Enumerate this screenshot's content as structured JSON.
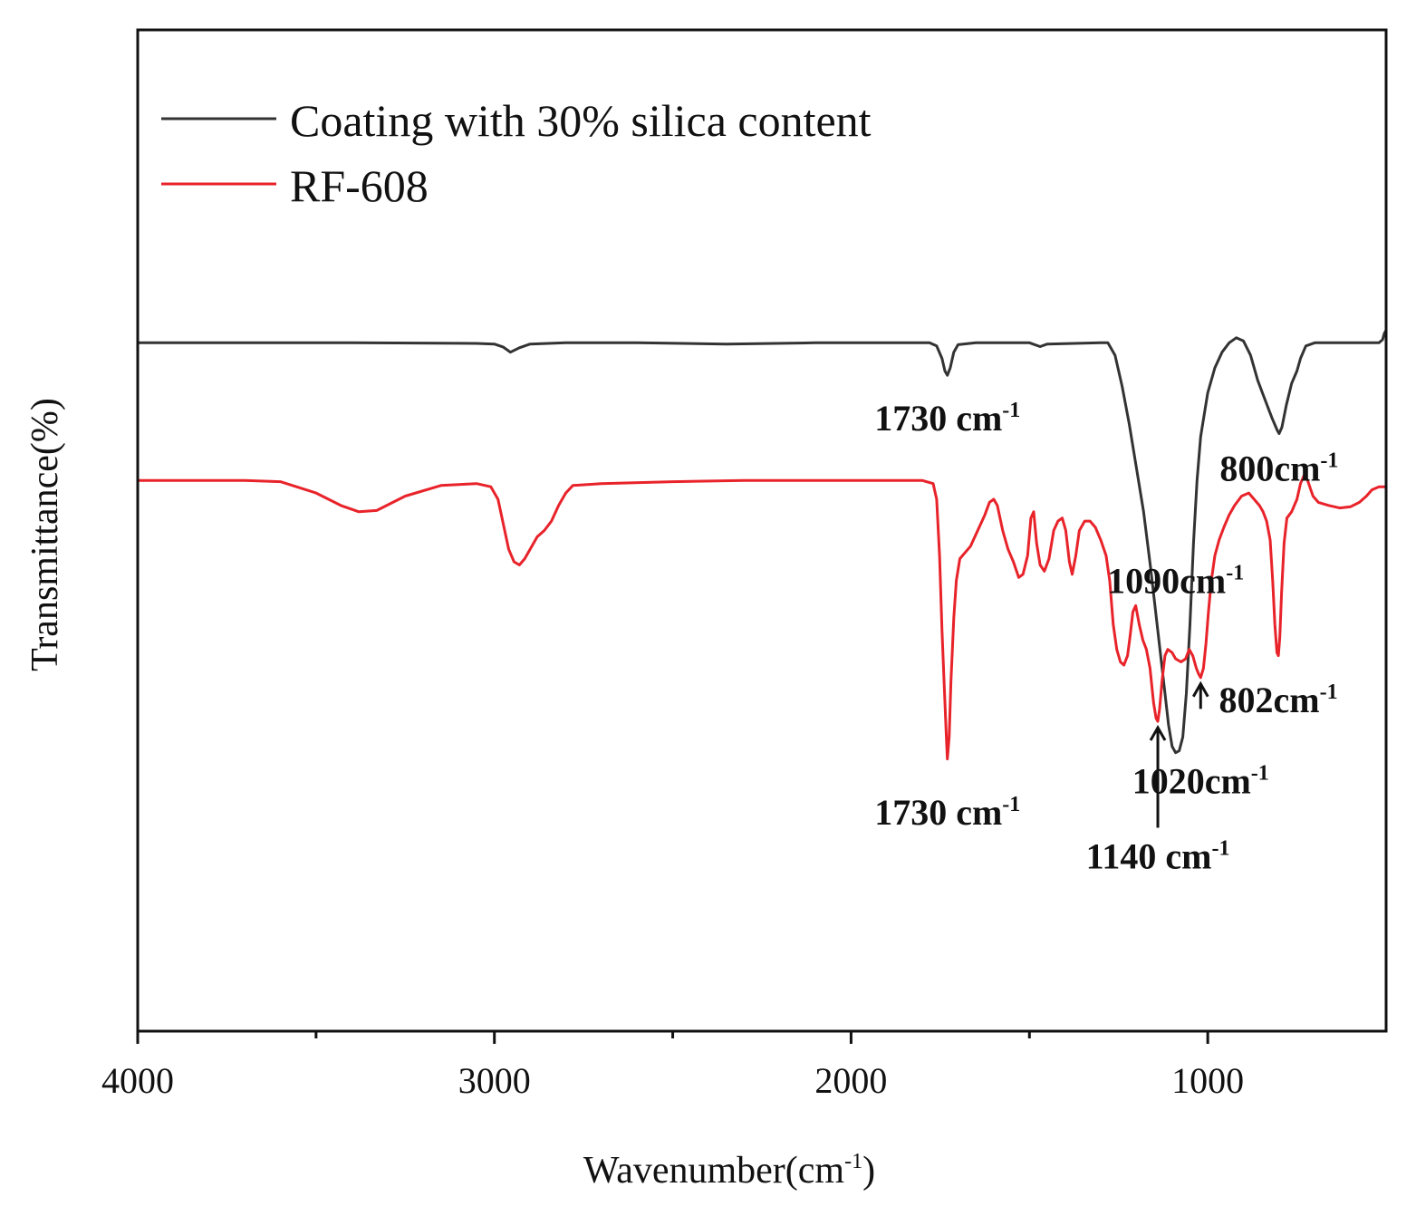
{
  "chart_data": {
    "type": "line",
    "xlabel": "Wavenumber(cm",
    "xlabel_sup": "-1",
    "xlabel_suffix": ")",
    "ylabel": "Transmittance(%)",
    "xlim": [
      4000,
      500
    ],
    "x_reversed": true,
    "ylim": [
      -50,
      110
    ],
    "x_ticks": [
      4000,
      3000,
      2000,
      1000
    ],
    "x_tick_labels": [
      "4000",
      "3000",
      "2000",
      "1000"
    ],
    "x_minor_ticks": [
      3500,
      2500,
      1500
    ],
    "y_ticks_shown": false,
    "grid": false,
    "legend_position": "top-left",
    "legend": [
      {
        "name": "Coating with 30% silica content",
        "color": "#333333"
      },
      {
        "name": "RF-608",
        "color": "#e8232a"
      }
    ],
    "series": [
      {
        "name": "Coating with 30% silica content",
        "color": "#333333",
        "points": [
          [
            4000,
            60
          ],
          [
            3700,
            60
          ],
          [
            3400,
            60
          ],
          [
            3050,
            59.9
          ],
          [
            3000,
            59.8
          ],
          [
            2975,
            59.3
          ],
          [
            2955,
            58.5
          ],
          [
            2930,
            59.2
          ],
          [
            2900,
            59.8
          ],
          [
            2800,
            60
          ],
          [
            2600,
            60
          ],
          [
            2350,
            59.8
          ],
          [
            2100,
            60
          ],
          [
            1900,
            60
          ],
          [
            1780,
            60
          ],
          [
            1760,
            59.5
          ],
          [
            1745,
            57.5
          ],
          [
            1737,
            55.5
          ],
          [
            1730,
            54.8
          ],
          [
            1722,
            56
          ],
          [
            1712,
            58.5
          ],
          [
            1700,
            59.7
          ],
          [
            1650,
            60
          ],
          [
            1500,
            60
          ],
          [
            1470,
            59.4
          ],
          [
            1450,
            59.8
          ],
          [
            1300,
            60
          ],
          [
            1280,
            60
          ],
          [
            1260,
            58
          ],
          [
            1240,
            53
          ],
          [
            1220,
            47
          ],
          [
            1200,
            40
          ],
          [
            1180,
            33
          ],
          [
            1160,
            24
          ],
          [
            1140,
            14
          ],
          [
            1120,
            4
          ],
          [
            1110,
            -1
          ],
          [
            1100,
            -4.5
          ],
          [
            1090,
            -5.5
          ],
          [
            1080,
            -5.2
          ],
          [
            1070,
            -3
          ],
          [
            1060,
            4
          ],
          [
            1050,
            15
          ],
          [
            1040,
            28
          ],
          [
            1030,
            38
          ],
          [
            1020,
            45
          ],
          [
            1000,
            52
          ],
          [
            980,
            56
          ],
          [
            960,
            58.5
          ],
          [
            940,
            60
          ],
          [
            920,
            60.8
          ],
          [
            900,
            60.3
          ],
          [
            880,
            58
          ],
          [
            860,
            54
          ],
          [
            840,
            51
          ],
          [
            820,
            48
          ],
          [
            805,
            46
          ],
          [
            800,
            45.5
          ],
          [
            792,
            46.5
          ],
          [
            780,
            50
          ],
          [
            765,
            53.5
          ],
          [
            750,
            55.5
          ],
          [
            740,
            57.5
          ],
          [
            725,
            59.5
          ],
          [
            700,
            60
          ],
          [
            600,
            60
          ],
          [
            540,
            60
          ],
          [
            520,
            60
          ],
          [
            510,
            60.5
          ],
          [
            505,
            61.5
          ],
          [
            500,
            62
          ]
        ]
      },
      {
        "name": "RF-608",
        "color": "#e8232a",
        "points": [
          [
            4000,
            38
          ],
          [
            3700,
            38
          ],
          [
            3600,
            37.8
          ],
          [
            3500,
            36
          ],
          [
            3430,
            34
          ],
          [
            3380,
            33
          ],
          [
            3330,
            33.2
          ],
          [
            3250,
            35.5
          ],
          [
            3150,
            37.2
          ],
          [
            3050,
            37.5
          ],
          [
            3010,
            37
          ],
          [
            2990,
            35
          ],
          [
            2975,
            31
          ],
          [
            2960,
            27
          ],
          [
            2945,
            25
          ],
          [
            2930,
            24.5
          ],
          [
            2915,
            25.5
          ],
          [
            2900,
            27
          ],
          [
            2880,
            29
          ],
          [
            2860,
            30
          ],
          [
            2840,
            31.5
          ],
          [
            2820,
            34
          ],
          [
            2800,
            36
          ],
          [
            2780,
            37.2
          ],
          [
            2700,
            37.5
          ],
          [
            2500,
            37.8
          ],
          [
            2300,
            38
          ],
          [
            2000,
            38
          ],
          [
            1800,
            38
          ],
          [
            1770,
            37.5
          ],
          [
            1760,
            35
          ],
          [
            1752,
            26
          ],
          [
            1745,
            14
          ],
          [
            1738,
            4
          ],
          [
            1733,
            -3
          ],
          [
            1730,
            -6.5
          ],
          [
            1725,
            -3
          ],
          [
            1720,
            6
          ],
          [
            1712,
            16
          ],
          [
            1705,
            22
          ],
          [
            1695,
            25.5
          ],
          [
            1680,
            26.5
          ],
          [
            1665,
            27.5
          ],
          [
            1645,
            30
          ],
          [
            1625,
            32.5
          ],
          [
            1612,
            34.5
          ],
          [
            1600,
            35
          ],
          [
            1590,
            34
          ],
          [
            1575,
            30
          ],
          [
            1560,
            27
          ],
          [
            1545,
            25
          ],
          [
            1530,
            22.5
          ],
          [
            1518,
            23
          ],
          [
            1505,
            26
          ],
          [
            1496,
            32
          ],
          [
            1488,
            33
          ],
          [
            1480,
            28
          ],
          [
            1470,
            24.5
          ],
          [
            1458,
            23.5
          ],
          [
            1445,
            25.5
          ],
          [
            1432,
            30
          ],
          [
            1420,
            31.5
          ],
          [
            1408,
            32
          ],
          [
            1398,
            30
          ],
          [
            1388,
            25
          ],
          [
            1380,
            23
          ],
          [
            1370,
            26
          ],
          [
            1360,
            30
          ],
          [
            1345,
            31.5
          ],
          [
            1330,
            31.5
          ],
          [
            1315,
            30.5
          ],
          [
            1300,
            28.5
          ],
          [
            1285,
            26
          ],
          [
            1275,
            22
          ],
          [
            1265,
            15
          ],
          [
            1255,
            11
          ],
          [
            1245,
            9
          ],
          [
            1235,
            8.5
          ],
          [
            1225,
            10
          ],
          [
            1218,
            13
          ],
          [
            1210,
            17
          ],
          [
            1202,
            18
          ],
          [
            1192,
            15
          ],
          [
            1182,
            12.5
          ],
          [
            1172,
            11
          ],
          [
            1162,
            8
          ],
          [
            1152,
            2.5
          ],
          [
            1145,
            0
          ],
          [
            1140,
            -0.5
          ],
          [
            1135,
            1.5
          ],
          [
            1128,
            6
          ],
          [
            1120,
            10
          ],
          [
            1112,
            11
          ],
          [
            1100,
            10.5
          ],
          [
            1090,
            9.5
          ],
          [
            1075,
            9
          ],
          [
            1062,
            9.5
          ],
          [
            1052,
            11
          ],
          [
            1042,
            10
          ],
          [
            1032,
            8
          ],
          [
            1025,
            7
          ],
          [
            1020,
            6.5
          ],
          [
            1012,
            8
          ],
          [
            1005,
            12
          ],
          [
            998,
            17
          ],
          [
            990,
            22
          ],
          [
            980,
            26
          ],
          [
            968,
            28.5
          ],
          [
            955,
            30.5
          ],
          [
            940,
            32.5
          ],
          [
            925,
            34
          ],
          [
            905,
            35.5
          ],
          [
            885,
            36
          ],
          [
            870,
            35
          ],
          [
            855,
            34
          ],
          [
            845,
            33
          ],
          [
            835,
            31.5
          ],
          [
            825,
            28.5
          ],
          [
            818,
            22
          ],
          [
            812,
            15
          ],
          [
            806,
            10.5
          ],
          [
            802,
            10
          ],
          [
            798,
            13
          ],
          [
            793,
            20
          ],
          [
            786,
            28
          ],
          [
            778,
            32
          ],
          [
            765,
            33
          ],
          [
            750,
            35
          ],
          [
            740,
            37.5
          ],
          [
            730,
            38.8
          ],
          [
            720,
            38
          ],
          [
            705,
            35.5
          ],
          [
            690,
            34.5
          ],
          [
            660,
            34
          ],
          [
            630,
            33.6
          ],
          [
            600,
            33.8
          ],
          [
            575,
            34.5
          ],
          [
            555,
            35.5
          ],
          [
            540,
            36.5
          ],
          [
            520,
            37
          ],
          [
            500,
            37
          ]
        ]
      }
    ],
    "annotations": [
      {
        "text": "1730 cm",
        "sup": "-1",
        "series": "Coating with 30% silica content",
        "x": 1730,
        "y": 46
      },
      {
        "text": "800cm",
        "sup": "-1",
        "series": "Coating with 30% silica content",
        "x": 800,
        "y": 38
      },
      {
        "text": "1090cm",
        "sup": "-1",
        "series": "Coating with 30% silica content",
        "x": 1090,
        "y": 20
      },
      {
        "text": "1730 cm",
        "sup": "-1",
        "series": "RF-608",
        "x": 1730,
        "y": -17
      },
      {
        "text": "802cm",
        "sup": "-1",
        "series": "RF-608",
        "x": 802,
        "y": 1
      },
      {
        "text": "1020cm",
        "sup": "-1",
        "series": "RF-608",
        "x": 1020,
        "y": -12
      },
      {
        "text": "1140 cm",
        "sup": "-1",
        "series": "RF-608",
        "x": 1140,
        "y": -24
      }
    ],
    "arrows": [
      {
        "label": "1140 cm-1",
        "x": 1140,
        "y_from": -17.5,
        "y_to": -1.5
      },
      {
        "label": "1020cm-1",
        "x": 1020,
        "y_from": 1.5,
        "y_to": 5.5
      }
    ]
  }
}
